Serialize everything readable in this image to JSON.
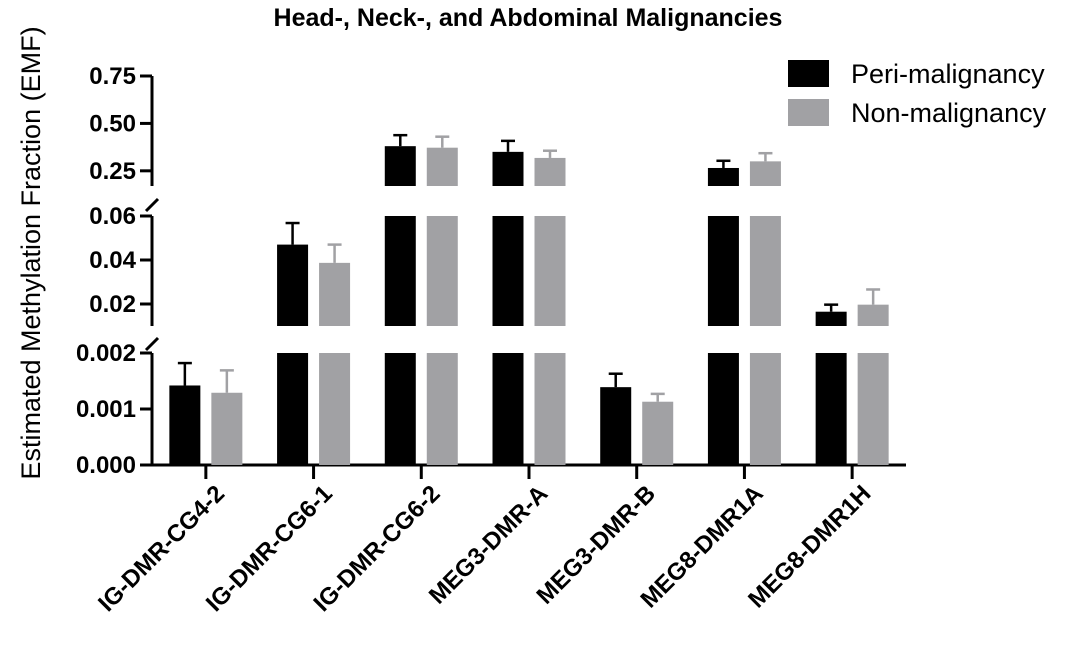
{
  "chart_data": {
    "type": "bar",
    "title": "Head-, Neck-, and Abdominal Malignancies",
    "xlabel": "",
    "ylabel": "Estimated Methylation Fraction (EMF)",
    "categories": [
      "IG-DMR-CG4-2",
      "IG-DMR-CG6-1",
      "IG-DMR-CG6-2",
      "MEG3-DMR-A",
      "MEG3-DMR-B",
      "MEG8-DMR1A",
      "MEG8-DMR1H"
    ],
    "series": [
      {
        "name": "Peri-malignancy",
        "color": "#000000",
        "values": [
          0.00142,
          0.047,
          0.38,
          0.35,
          0.00139,
          0.265,
          0.0165
        ],
        "errors": [
          0.0004,
          0.0098,
          0.058,
          0.058,
          0.00024,
          0.038,
          0.0032
        ]
      },
      {
        "name": "Non-malignancy",
        "color": "#a1a1a4",
        "values": [
          0.00129,
          0.0387,
          0.372,
          0.318,
          0.00113,
          0.3,
          0.0197
        ],
        "errors": [
          0.0004,
          0.0083,
          0.058,
          0.038,
          0.00014,
          0.043,
          0.0069
        ]
      }
    ],
    "y_segments": [
      {
        "range": [
          0,
          0.002
        ],
        "ticks": [
          "0.000",
          "0.001",
          "0.002"
        ]
      },
      {
        "range": [
          0.01,
          0.06
        ],
        "ticks": [
          "0.02",
          "0.04",
          "0.06"
        ]
      },
      {
        "range": [
          0.17,
          0.75
        ],
        "ticks": [
          "0.25",
          "0.50",
          "0.75"
        ]
      }
    ],
    "legend_position": "top-right",
    "grid": false
  }
}
